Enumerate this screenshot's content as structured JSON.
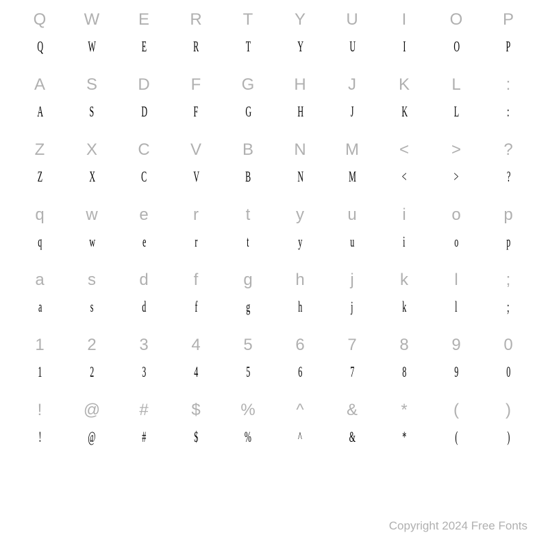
{
  "grid": {
    "rows": [
      {
        "refs": [
          "Q",
          "W",
          "E",
          "R",
          "T",
          "Y",
          "U",
          "I",
          "O",
          "P"
        ],
        "glyphs": [
          "Q",
          "W",
          "E",
          "R",
          "T",
          "Y",
          "U",
          "I",
          "O",
          "P"
        ]
      },
      {
        "refs": [
          "A",
          "S",
          "D",
          "F",
          "G",
          "H",
          "J",
          "K",
          "L",
          ":"
        ],
        "glyphs": [
          "A",
          "S",
          "D",
          "F",
          "G",
          "H",
          "J",
          "K",
          "L",
          ":"
        ]
      },
      {
        "refs": [
          "Z",
          "X",
          "C",
          "V",
          "B",
          "N",
          "M",
          "<",
          ">",
          "?"
        ],
        "glyphs": [
          "Z",
          "X",
          "C",
          "V",
          "B",
          "N",
          "M",
          "<",
          ">",
          "?"
        ]
      },
      {
        "refs": [
          "q",
          "w",
          "e",
          "r",
          "t",
          "y",
          "u",
          "i",
          "o",
          "p"
        ],
        "glyphs": [
          "q",
          "w",
          "e",
          "r",
          "t",
          "y",
          "u",
          "i",
          "o",
          "p"
        ]
      },
      {
        "refs": [
          "a",
          "s",
          "d",
          "f",
          "g",
          "h",
          "j",
          "k",
          "l",
          ";"
        ],
        "glyphs": [
          "a",
          "s",
          "d",
          "f",
          "g",
          "h",
          "j",
          "k",
          "l",
          ";"
        ]
      },
      {
        "refs": [
          "1",
          "2",
          "3",
          "4",
          "5",
          "6",
          "7",
          "8",
          "9",
          "0"
        ],
        "glyphs": [
          "1",
          "2",
          "3",
          "4",
          "5",
          "6",
          "7",
          "8",
          "9",
          "0"
        ]
      },
      {
        "refs": [
          "!",
          "@",
          "#",
          "$",
          "%",
          "^",
          "&",
          "*",
          "(",
          ")"
        ],
        "glyphs": [
          "!",
          "@",
          "#",
          "$",
          "%",
          "^",
          "&",
          "*",
          "(",
          ")"
        ]
      }
    ],
    "columns": 10,
    "ref_color": "#b0b0b0",
    "glyph_color": "#000000",
    "ref_fontsize": 24,
    "glyph_fontsize": 22,
    "background_color": "#ffffff"
  },
  "footer": {
    "text": "Copyright 2024 Free Fonts",
    "color": "#b0b0b0",
    "fontsize": 17
  }
}
